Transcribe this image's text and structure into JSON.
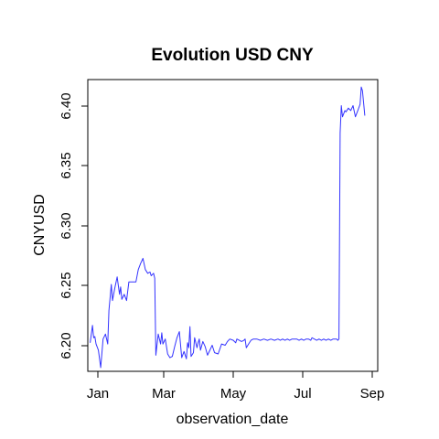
{
  "chart_data": {
    "type": "line",
    "title": "Evolution USD CNY",
    "xlabel": "observation_date",
    "ylabel": "CNYUSD",
    "x_ticks": [
      "Jan",
      "Mar",
      "May",
      "Jul",
      "Sep"
    ],
    "y_ticks": [
      "6.20",
      "6.25",
      "6.30",
      "6.35",
      "6.40"
    ],
    "x_start": "2015-01-01",
    "xlim": [
      0,
      247
    ],
    "ylim": [
      6.183,
      6.418
    ],
    "line_color": "#3333ff",
    "grid": false,
    "series": [
      {
        "values": [
          [
            2,
            6.206
          ],
          [
            4,
            6.22
          ],
          [
            5,
            6.21
          ],
          [
            6,
            6.211
          ],
          [
            7,
            6.205
          ],
          [
            9,
            6.2
          ],
          [
            11,
            6.186
          ],
          [
            13,
            6.209
          ],
          [
            15,
            6.213
          ],
          [
            17,
            6.205
          ],
          [
            18,
            6.232
          ],
          [
            20,
            6.253
          ],
          [
            21,
            6.24
          ],
          [
            23,
            6.25
          ],
          [
            25,
            6.259
          ],
          [
            27,
            6.245
          ],
          [
            28,
            6.251
          ],
          [
            29,
            6.241
          ],
          [
            31,
            6.245
          ],
          [
            33,
            6.24
          ],
          [
            35,
            6.255
          ],
          [
            38,
            6.255
          ],
          [
            41,
            6.255
          ],
          [
            43,
            6.265
          ],
          [
            45,
            6.27
          ],
          [
            47,
            6.274
          ],
          [
            49,
            6.265
          ],
          [
            51,
            6.262
          ],
          [
            53,
            6.263
          ],
          [
            54,
            6.26
          ],
          [
            56,
            6.262
          ],
          [
            57,
            6.258
          ],
          [
            58,
            6.196
          ],
          [
            60,
            6.213
          ],
          [
            62,
            6.205
          ],
          [
            63,
            6.214
          ],
          [
            64,
            6.205
          ],
          [
            66,
            6.209
          ],
          [
            68,
            6.197
          ],
          [
            70,
            6.194
          ],
          [
            72,
            6.195
          ],
          [
            74,
            6.203
          ],
          [
            76,
            6.21
          ],
          [
            78,
            6.215
          ],
          [
            80,
            6.194
          ],
          [
            82,
            6.199
          ],
          [
            84,
            6.193
          ],
          [
            85,
            6.206
          ],
          [
            86,
            6.202
          ],
          [
            87,
            6.219
          ],
          [
            88,
            6.195
          ],
          [
            90,
            6.198
          ],
          [
            91,
            6.21
          ],
          [
            93,
            6.202
          ],
          [
            94,
            6.206
          ],
          [
            95,
            6.209
          ],
          [
            96,
            6.2
          ],
          [
            98,
            6.207
          ],
          [
            100,
            6.203
          ],
          [
            102,
            6.196
          ],
          [
            104,
            6.2
          ],
          [
            106,
            6.204
          ],
          [
            108,
            6.198
          ],
          [
            111,
            6.197
          ],
          [
            114,
            6.205
          ],
          [
            117,
            6.204
          ],
          [
            119,
            6.207
          ],
          [
            121,
            6.209
          ],
          [
            124,
            6.208
          ],
          [
            126,
            6.206
          ],
          [
            127,
            6.209
          ],
          [
            129,
            6.208
          ],
          [
            131,
            6.207
          ],
          [
            133,
            6.208
          ],
          [
            134,
            6.209
          ],
          [
            135,
            6.202
          ],
          [
            137,
            6.205
          ],
          [
            139,
            6.208
          ],
          [
            141,
            6.209
          ],
          [
            144,
            6.209
          ],
          [
            147,
            6.208
          ],
          [
            150,
            6.209
          ],
          [
            153,
            6.208
          ],
          [
            156,
            6.209
          ],
          [
            159,
            6.208
          ],
          [
            162,
            6.209
          ],
          [
            164,
            6.208
          ],
          [
            166,
            6.209
          ],
          [
            168,
            6.208
          ],
          [
            170,
            6.209
          ],
          [
            172,
            6.208
          ],
          [
            174,
            6.209
          ],
          [
            176,
            6.209
          ],
          [
            178,
            6.209
          ],
          [
            180,
            6.208
          ],
          [
            182,
            6.209
          ],
          [
            184,
            6.208
          ],
          [
            186,
            6.209
          ],
          [
            188,
            6.209
          ],
          [
            190,
            6.208
          ],
          [
            191,
            6.21
          ],
          [
            193,
            6.209
          ],
          [
            195,
            6.208
          ],
          [
            197,
            6.209
          ],
          [
            199,
            6.208
          ],
          [
            201,
            6.209
          ],
          [
            203,
            6.208
          ],
          [
            205,
            6.209
          ],
          [
            207,
            6.208
          ],
          [
            209,
            6.209
          ],
          [
            211,
            6.209
          ],
          [
            212,
            6.209
          ],
          [
            213,
            6.208
          ],
          [
            214,
            6.209
          ],
          [
            215,
            6.375
          ],
          [
            216,
            6.397
          ],
          [
            217,
            6.388
          ],
          [
            219,
            6.393
          ],
          [
            220,
            6.392
          ],
          [
            222,
            6.395
          ],
          [
            224,
            6.393
          ],
          [
            226,
            6.397
          ],
          [
            228,
            6.388
          ],
          [
            230,
            6.393
          ],
          [
            232,
            6.398
          ],
          [
            233,
            6.412
          ],
          [
            234,
            6.409
          ],
          [
            235,
            6.399
          ],
          [
            236,
            6.389
          ]
        ]
      }
    ]
  }
}
